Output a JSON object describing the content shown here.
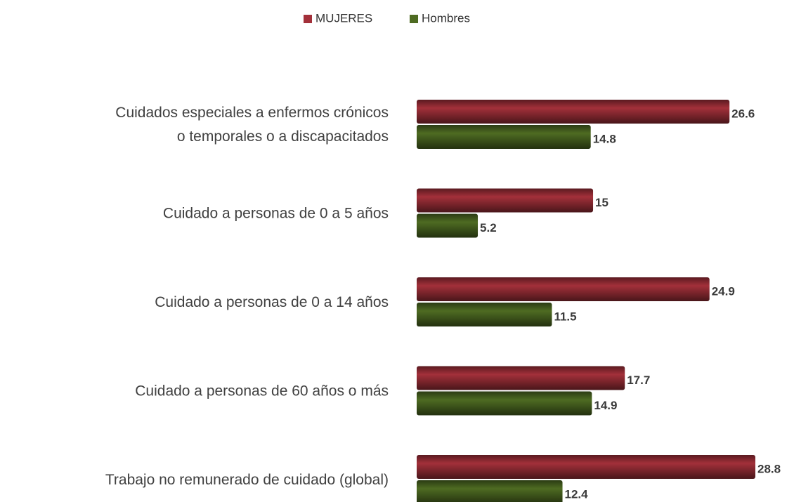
{
  "chart_data": {
    "type": "bar",
    "orientation": "horizontal",
    "categories": [
      "Cuidados especiales a enfermos crónicos\no temporales o a discapacitados",
      "Cuidado a personas de 0 a 5 años",
      "Cuidado a personas de 0 a 14 años",
      "Cuidado a personas de 60 años o más",
      "Trabajo no remunerado de cuidado (global)"
    ],
    "series": [
      {
        "name": "MUJERES",
        "color": "#a3303a",
        "values": [
          26.6,
          15,
          24.9,
          17.7,
          28.8
        ]
      },
      {
        "name": "Hombres",
        "color": "#4e6b22",
        "values": [
          14.8,
          5.2,
          11.5,
          14.9,
          12.4
        ]
      }
    ],
    "legend": "top",
    "data_labels": true
  }
}
